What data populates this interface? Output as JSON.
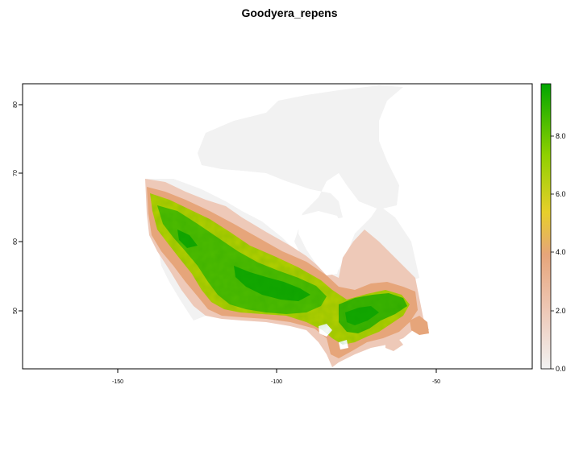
{
  "title": "Goodyera_repens",
  "axes": {
    "x_ticks": [
      "-150",
      "-100",
      "-50"
    ],
    "y_ticks": [
      "80",
      "70",
      "60",
      "50"
    ]
  },
  "legend": {
    "labels": [
      "8.0",
      "6.0",
      "4.0",
      "2.0",
      "0.0"
    ],
    "min": 0,
    "max": 9.6,
    "colors": [
      "#f2f2f2",
      "#eec9b8",
      "#e6a57a",
      "#e7cf2a",
      "#8fd000",
      "#00a600"
    ]
  },
  "map": {
    "region": "Canada",
    "x_range": [
      -180,
      -20
    ],
    "y_range": [
      41.5,
      83.5
    ]
  }
}
